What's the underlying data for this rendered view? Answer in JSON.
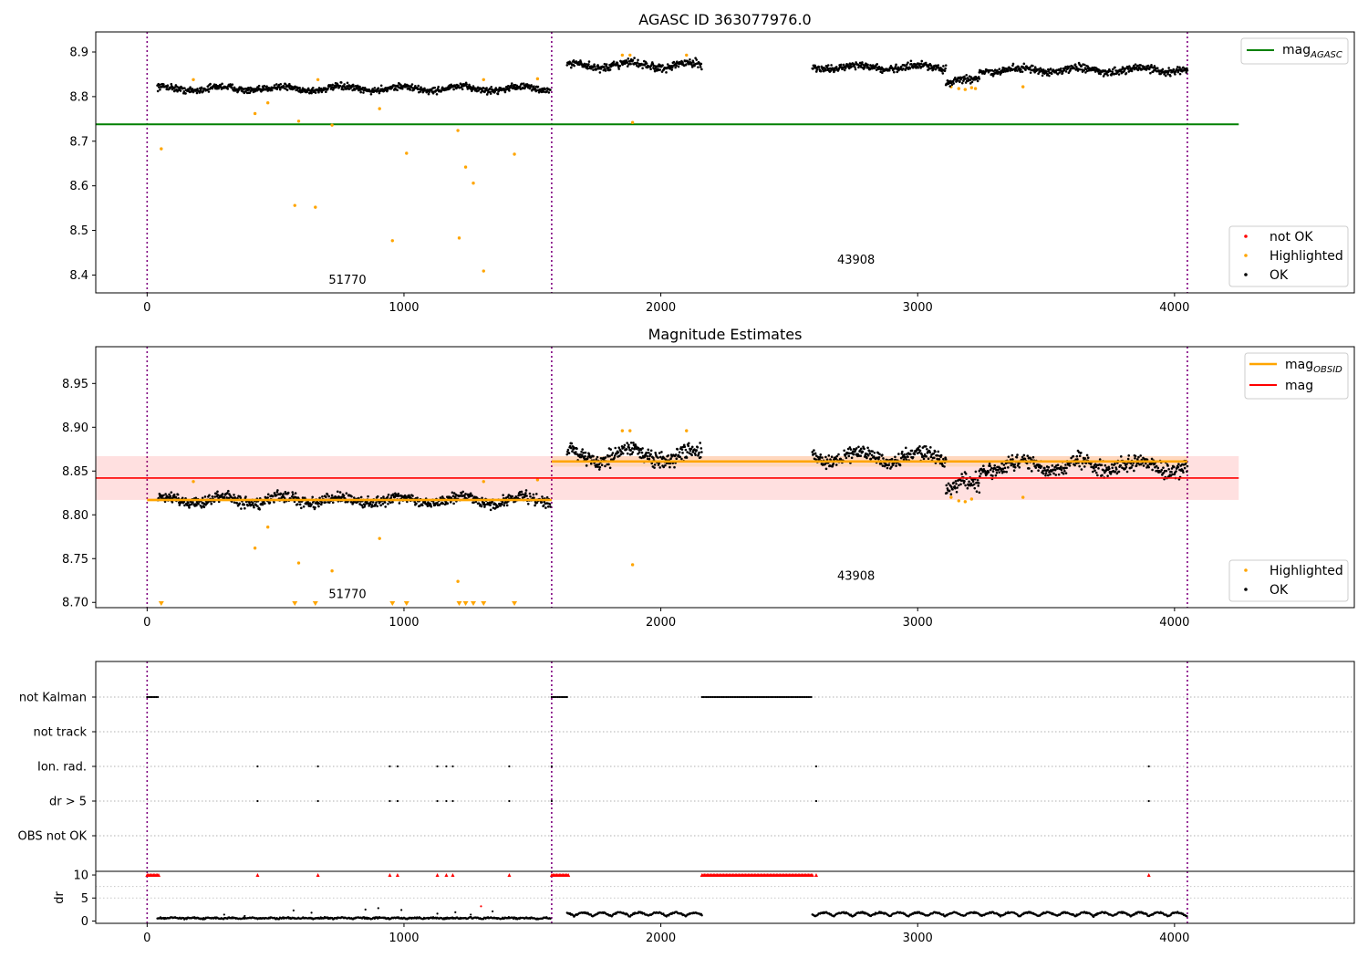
{
  "chart_data": [
    {
      "type": "scatter",
      "title": "AGASC ID 363077976.0",
      "xlim": [
        -200,
        4700
      ],
      "ylim": [
        8.36,
        8.945
      ],
      "xticks": [
        0,
        1000,
        2000,
        3000,
        4000
      ],
      "yticks": [
        8.4,
        8.5,
        8.6,
        8.7,
        8.8,
        8.9
      ],
      "obsid_boundaries": [
        0,
        1575,
        4050
      ],
      "obsid_labels": [
        {
          "text": "51770",
          "x": 780,
          "y": 8.38
        },
        {
          "text": "43908",
          "x": 2760,
          "y": 8.425
        }
      ],
      "reference_line": {
        "name": "mag",
        "subscript": "AGASC",
        "value": 8.738,
        "x": [
          -200,
          4250
        ],
        "color": "#008000"
      },
      "ok_segments": [
        {
          "x": [
            40,
            1570
          ],
          "mean": 8.818,
          "spread": 0.008
        },
        {
          "x": [
            1635,
            2160
          ],
          "mean": 8.87,
          "spread": 0.01
        },
        {
          "x": [
            2590,
            3110
          ],
          "mean": 8.866,
          "spread": 0.009
        },
        {
          "x": [
            3110,
            3240
          ],
          "mean": 8.835,
          "spread": 0.01
        },
        {
          "x": [
            3240,
            4050
          ],
          "mean": 8.86,
          "spread": 0.009
        }
      ],
      "highlighted_points": [
        [
          55,
          8.683
        ],
        [
          180,
          8.838
        ],
        [
          420,
          8.762
        ],
        [
          470,
          8.786
        ],
        [
          590,
          8.745
        ],
        [
          575,
          8.556
        ],
        [
          655,
          8.552
        ],
        [
          665,
          8.838
        ],
        [
          720,
          8.736
        ],
        [
          905,
          8.773
        ],
        [
          955,
          8.477
        ],
        [
          1010,
          8.673
        ],
        [
          1210,
          8.724
        ],
        [
          1215,
          8.483
        ],
        [
          1240,
          8.642
        ],
        [
          1270,
          8.606
        ],
        [
          1310,
          8.409
        ],
        [
          1310,
          8.838
        ],
        [
          1430,
          8.671
        ],
        [
          1520,
          8.84
        ],
        [
          1850,
          8.893
        ],
        [
          1880,
          8.893
        ],
        [
          1890,
          8.742
        ],
        [
          2100,
          8.893
        ],
        [
          3130,
          8.822
        ],
        [
          3160,
          8.818
        ],
        [
          3185,
          8.816
        ],
        [
          3210,
          8.82
        ],
        [
          3225,
          8.818
        ],
        [
          3410,
          8.822
        ]
      ],
      "legend": [
        "not OK",
        "Highlighted",
        "OK"
      ],
      "legend_colors": {
        "not OK": "#ff0000",
        "Highlighted": "#ffa500",
        "OK": "#000000"
      }
    },
    {
      "type": "scatter",
      "title": "Magnitude Estimates",
      "xlim": [
        -200,
        4700
      ],
      "ylim": [
        8.694,
        8.992
      ],
      "xticks": [
        0,
        1000,
        2000,
        3000,
        4000
      ],
      "yticks": [
        8.7,
        8.75,
        8.8,
        8.85,
        8.9,
        8.95
      ],
      "obsid_boundaries": [
        0,
        1575,
        4050
      ],
      "obsid_labels": [
        {
          "text": "51770",
          "x": 780,
          "y": 8.705
        },
        {
          "text": "43908",
          "x": 2760,
          "y": 8.726
        }
      ],
      "mag": {
        "value": 8.842,
        "band": [
          8.817,
          8.867
        ],
        "x": [
          -200,
          4250
        ],
        "color": "#ff0000"
      },
      "mag_obsid": [
        {
          "x": [
            0,
            1575
          ],
          "value": 8.817,
          "band": [
            8.815,
            8.819
          ]
        },
        {
          "x": [
            1575,
            4050
          ],
          "value": 8.861,
          "band": [
            8.855,
            8.867
          ]
        }
      ],
      "ok_segments": [
        {
          "x": [
            40,
            1570
          ],
          "mean": 8.817,
          "spread": 0.007
        },
        {
          "x": [
            1635,
            2160
          ],
          "mean": 8.868,
          "spread": 0.011
        },
        {
          "x": [
            2590,
            3110
          ],
          "mean": 8.866,
          "spread": 0.009
        },
        {
          "x": [
            3110,
            3240
          ],
          "mean": 8.833,
          "spread": 0.01
        },
        {
          "x": [
            3240,
            4050
          ],
          "mean": 8.856,
          "spread": 0.01
        }
      ],
      "highlighted_points": [
        [
          180,
          8.838
        ],
        [
          420,
          8.762
        ],
        [
          470,
          8.786
        ],
        [
          590,
          8.745
        ],
        [
          720,
          8.736
        ],
        [
          905,
          8.773
        ],
        [
          1210,
          8.724
        ],
        [
          1310,
          8.838
        ],
        [
          1520,
          8.84
        ],
        [
          1850,
          8.896
        ],
        [
          1880,
          8.896
        ],
        [
          1890,
          8.743
        ],
        [
          2100,
          8.896
        ],
        [
          3130,
          8.82
        ],
        [
          3160,
          8.816
        ],
        [
          3185,
          8.815
        ],
        [
          3210,
          8.818
        ],
        [
          3410,
          8.82
        ]
      ],
      "clipped_low_points": [
        55,
        575,
        655,
        955,
        1010,
        1215,
        1240,
        1270,
        1310,
        1430
      ],
      "legend": [
        "mag",
        "mag",
        "Highlighted",
        "OK"
      ],
      "legend_subscripts": [
        "OBSID",
        "",
        "",
        ""
      ],
      "legend_colors": {
        "mag_obsid": "#ffa500",
        "mag": "#ff0000",
        "Highlighted": "#ffa500",
        "OK": "#000000"
      }
    },
    {
      "type": "scatter",
      "title": "",
      "xlim": [
        -200,
        4700
      ],
      "xticks": [
        0,
        1000,
        2000,
        3000,
        4000
      ],
      "obsid_boundaries": [
        0,
        1575,
        4050
      ],
      "flag_rows": [
        "not Kalman",
        "not track",
        "Ion. rad.",
        "dr > 5",
        "OBS not OK"
      ],
      "flags": {
        "not Kalman": [
          [
            0,
            45
          ],
          [
            1575,
            1640
          ],
          [
            2160,
            2590
          ]
        ],
        "not track": [],
        "Ion. rad.": [
          430,
          665,
          945,
          975,
          1130,
          1165,
          1190,
          1410,
          1575,
          2605,
          3900
        ],
        "dr > 5": [
          430,
          665,
          945,
          975,
          1130,
          1165,
          1190,
          1410,
          1575,
          2605,
          3900
        ],
        "OBS not OK": []
      },
      "dr_panel": {
        "ylabel": "dr",
        "yticks": [
          0,
          5,
          10
        ],
        "ylim": [
          -0.5,
          10.8
        ],
        "clipped_value": 10,
        "clipped_ranges": [
          [
            0,
            45
          ],
          [
            1575,
            1640
          ],
          [
            2160,
            2590
          ]
        ],
        "clipped_points": [
          430,
          665,
          945,
          975,
          1130,
          1165,
          1190,
          1410,
          2605,
          3900
        ],
        "ok_segments": [
          [
            40,
            1570
          ],
          [
            1635,
            2160
          ],
          [
            2590,
            4050
          ]
        ],
        "scattered": [
          [
            570,
            2.3
          ],
          [
            640,
            1.8
          ],
          [
            850,
            2.5
          ],
          [
            900,
            2.8
          ],
          [
            990,
            2.4
          ],
          [
            1130,
            1.6
          ],
          [
            1200,
            1.9
          ],
          [
            1260,
            1.4
          ],
          [
            1300,
            3.2
          ],
          [
            1345,
            2.1
          ],
          [
            300,
            1.4
          ],
          [
            380,
            1.1
          ]
        ]
      }
    }
  ]
}
